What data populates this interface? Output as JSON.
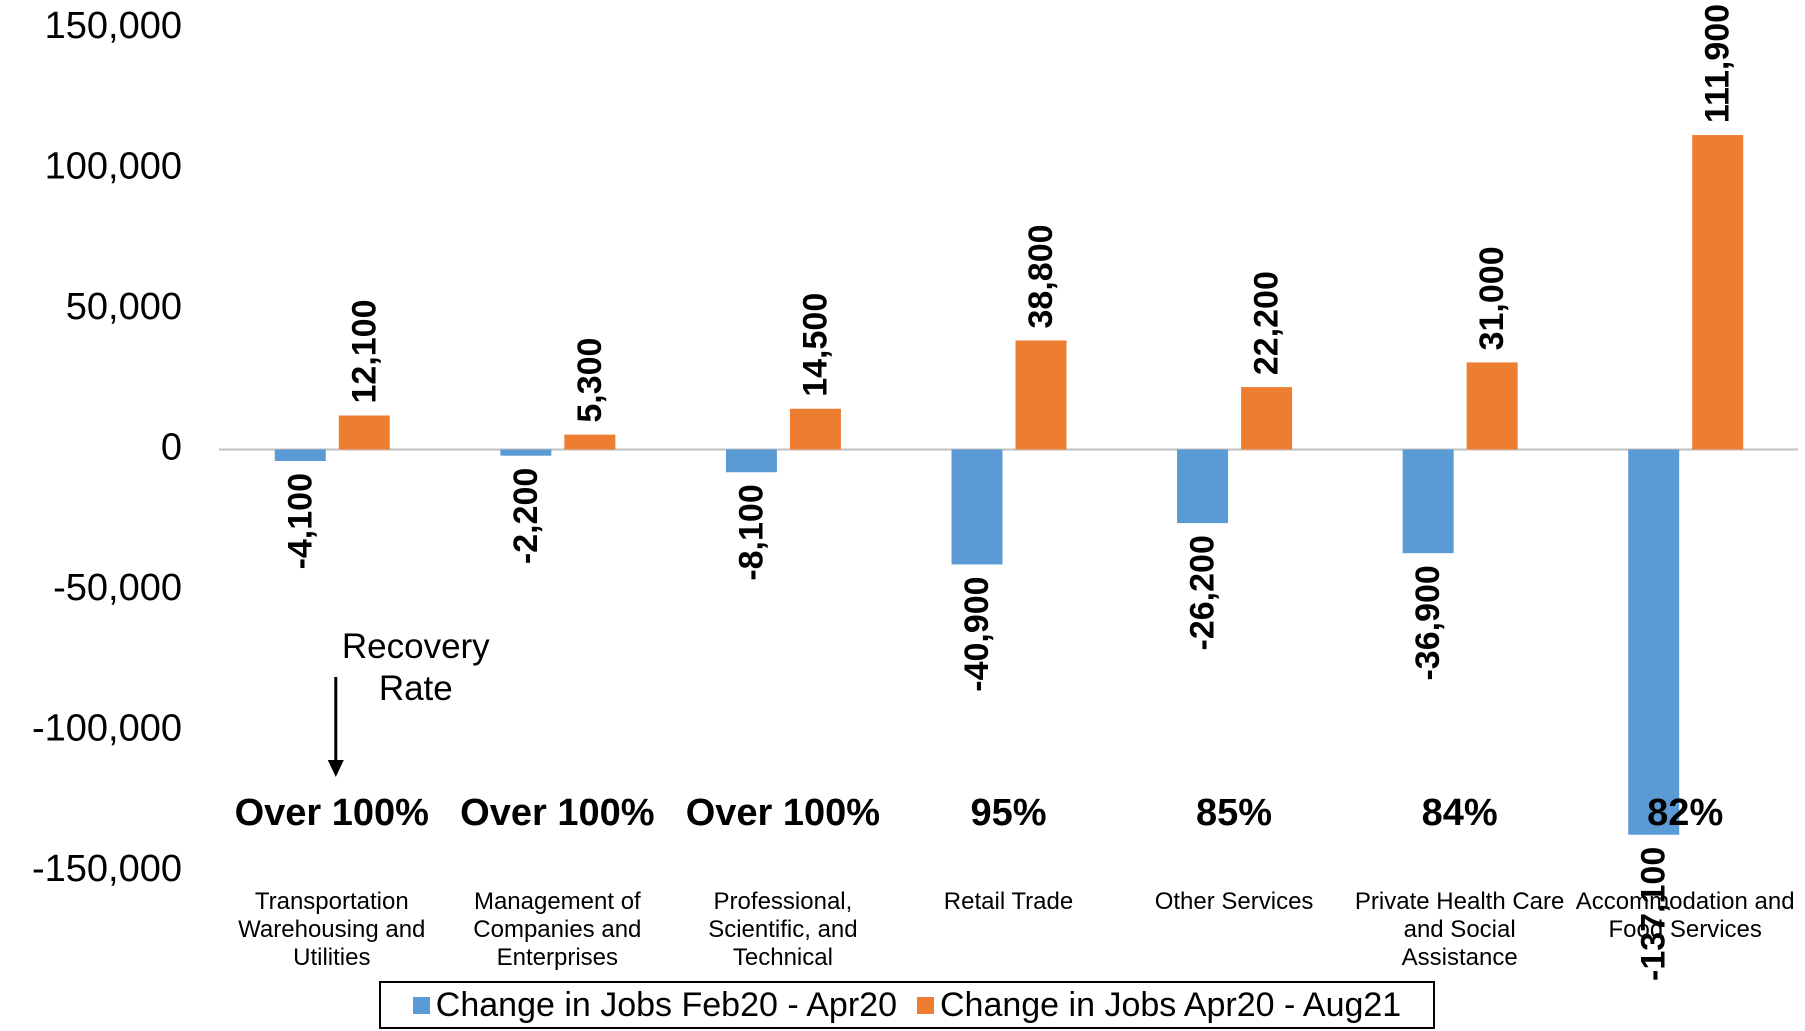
{
  "chart_data": {
    "type": "bar",
    "categories": [
      "Transportation Warehousing and Utilities",
      "Management of Companies and Enterprises",
      "Professional, Scientific, and Technical",
      "Retail Trade",
      "Other Services",
      "Private Health Care and Social Assistance",
      "Accommodation and Food Services"
    ],
    "series": [
      {
        "name": "Change in Jobs Feb20 - Apr20",
        "color": "#5b9bd5",
        "values": [
          -4100,
          -2200,
          -8100,
          -40900,
          -26200,
          -36900,
          -137100
        ],
        "value_labels": [
          "-4,100",
          "-2,200",
          "-8,100",
          "-40,900",
          "-26,200",
          "-36,900",
          "-137,100"
        ]
      },
      {
        "name": "Change in Jobs Apr20 - Aug21",
        "color": "#ed7d31",
        "values": [
          12100,
          5300,
          14500,
          38800,
          22200,
          31000,
          111900
        ],
        "value_labels": [
          "12,100",
          "5,300",
          "14,500",
          "38,800",
          "22,200",
          "31,000",
          "111,900"
        ]
      }
    ],
    "recovery_rates": [
      "Over 100%",
      "Over 100%",
      "Over 100%",
      "95%",
      "85%",
      "84%",
      "82%"
    ],
    "annotation": "Recovery Rate",
    "ylim": [
      -150000,
      150000
    ],
    "yticks": [
      {
        "value": -150000,
        "label": "-150,000"
      },
      {
        "value": -100000,
        "label": "-100,000"
      },
      {
        "value": -50000,
        "label": "-50,000"
      },
      0,
      {
        "value": 50000,
        "label": "50,000"
      },
      {
        "value": 100000,
        "label": "100,000"
      },
      {
        "value": 150000,
        "label": "150,000"
      }
    ],
    "grid": false,
    "legend": "bottom"
  }
}
